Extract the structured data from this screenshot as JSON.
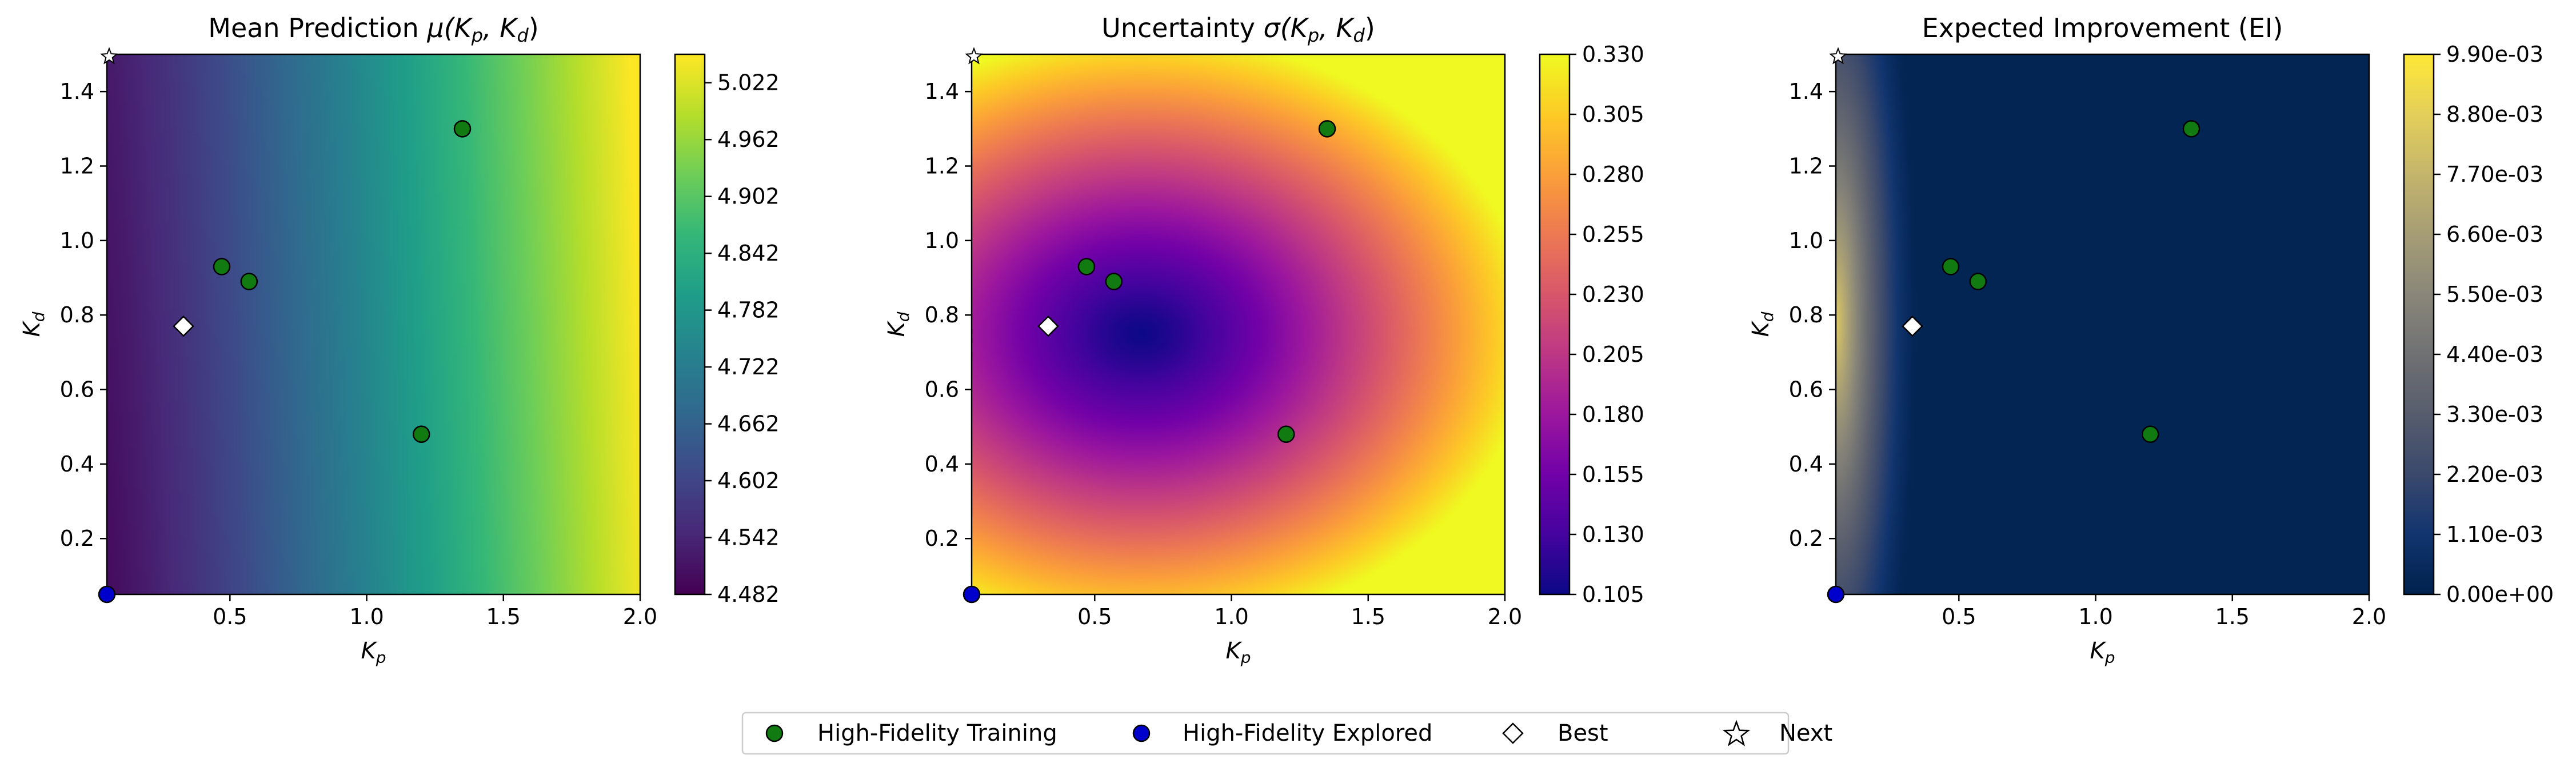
{
  "chart_data": [
    {
      "type": "heatmap",
      "title_prefix": "Mean Prediction ",
      "title_math": "μ(K",
      "title_sub1": "p",
      "title_mid": ", K",
      "title_sub2": "d",
      "title_end": ")",
      "xlabel_main": "K",
      "xlabel_sub": "p",
      "ylabel_main": "K",
      "ylabel_sub": "d",
      "xlim": [
        0.05,
        2.0
      ],
      "ylim": [
        0.05,
        1.5
      ],
      "xticks": [
        0.5,
        1.0,
        1.5,
        2.0
      ],
      "xtick_labels": [
        "0.5",
        "1.0",
        "1.5",
        "2.0"
      ],
      "yticks": [
        0.2,
        0.4,
        0.6,
        0.8,
        1.0,
        1.2,
        1.4
      ],
      "ytick_labels": [
        "0.2",
        "0.4",
        "0.6",
        "0.8",
        "1.0",
        "1.2",
        "1.4"
      ],
      "colormap": "viridis",
      "field": "mean",
      "clim": [
        4.482,
        5.052
      ],
      "colorbar_ticks": [
        4.482,
        4.542,
        4.602,
        4.662,
        4.722,
        4.782,
        4.842,
        4.902,
        4.962,
        5.022
      ],
      "colorbar_labels": [
        "4.482",
        "4.542",
        "4.602",
        "4.662",
        "4.722",
        "4.782",
        "4.842",
        "4.902",
        "4.962",
        "5.022"
      ]
    },
    {
      "type": "heatmap",
      "title_prefix": "Uncertainty ",
      "title_math": "σ(K",
      "title_sub1": "p",
      "title_mid": ", K",
      "title_sub2": "d",
      "title_end": ")",
      "xlabel_main": "K",
      "xlabel_sub": "p",
      "ylabel_main": "K",
      "ylabel_sub": "d",
      "xlim": [
        0.05,
        2.0
      ],
      "ylim": [
        0.05,
        1.5
      ],
      "xticks": [
        0.5,
        1.0,
        1.5,
        2.0
      ],
      "xtick_labels": [
        "0.5",
        "1.0",
        "1.5",
        "2.0"
      ],
      "yticks": [
        0.2,
        0.4,
        0.6,
        0.8,
        1.0,
        1.2,
        1.4
      ],
      "ytick_labels": [
        "0.2",
        "0.4",
        "0.6",
        "0.8",
        "1.0",
        "1.2",
        "1.4"
      ],
      "colormap": "plasma",
      "field": "sigma",
      "clim": [
        0.105,
        0.33
      ],
      "colorbar_ticks": [
        0.105,
        0.13,
        0.155,
        0.18,
        0.205,
        0.23,
        0.255,
        0.28,
        0.305,
        0.33
      ],
      "colorbar_labels": [
        "0.105",
        "0.130",
        "0.155",
        "0.180",
        "0.205",
        "0.230",
        "0.255",
        "0.280",
        "0.305",
        "0.330"
      ]
    },
    {
      "type": "heatmap",
      "title_prefix": "Expected Improvement (EI)",
      "title_math": "",
      "title_sub1": "",
      "title_mid": "",
      "title_sub2": "",
      "title_end": "",
      "xlabel_main": "K",
      "xlabel_sub": "p",
      "ylabel_main": "K",
      "ylabel_sub": "d",
      "xlim": [
        0.05,
        2.0
      ],
      "ylim": [
        0.05,
        1.5
      ],
      "xticks": [
        0.5,
        1.0,
        1.5,
        2.0
      ],
      "xtick_labels": [
        "0.5",
        "1.0",
        "1.5",
        "2.0"
      ],
      "yticks": [
        0.2,
        0.4,
        0.6,
        0.8,
        1.0,
        1.2,
        1.4
      ],
      "ytick_labels": [
        "0.2",
        "0.4",
        "0.6",
        "0.8",
        "1.0",
        "1.2",
        "1.4"
      ],
      "colormap": "cividis",
      "field": "ei",
      "clim": [
        0.0,
        0.0099
      ],
      "colorbar_ticks": [
        0.0,
        0.0011,
        0.0022,
        0.0033,
        0.0044,
        0.0055,
        0.0066,
        0.0077,
        0.0088,
        0.0099
      ],
      "colorbar_labels": [
        "0.00e+00",
        "1.10e-03",
        "2.20e-03",
        "3.30e-03",
        "4.40e-03",
        "5.50e-03",
        "6.60e-03",
        "7.70e-03",
        "8.80e-03",
        "9.90e-03"
      ]
    }
  ],
  "points": {
    "high_fidelity_training": [
      {
        "x": 0.47,
        "y": 0.93
      },
      {
        "x": 0.57,
        "y": 0.89
      },
      {
        "x": 1.35,
        "y": 1.3
      },
      {
        "x": 1.2,
        "y": 0.48
      }
    ],
    "high_fidelity_explored": [
      {
        "x": 0.05,
        "y": 0.05
      }
    ],
    "best": {
      "x": 0.33,
      "y": 0.77
    },
    "next": {
      "x": 0.05,
      "y": 1.5
    }
  },
  "colors": {
    "training": "#117a11",
    "explored": "#0000cc",
    "best": "#ffffff",
    "next": "#ffffff"
  },
  "legend": {
    "items": [
      {
        "label": "High-Fidelity Training",
        "marker": "circle",
        "color": "#117a11"
      },
      {
        "label": "High-Fidelity Explored",
        "marker": "circle",
        "color": "#0000cc"
      },
      {
        "label": "Best",
        "marker": "diamond",
        "color": "#ffffff"
      },
      {
        "label": "Next",
        "marker": "star",
        "color": "#ffffff"
      }
    ]
  }
}
